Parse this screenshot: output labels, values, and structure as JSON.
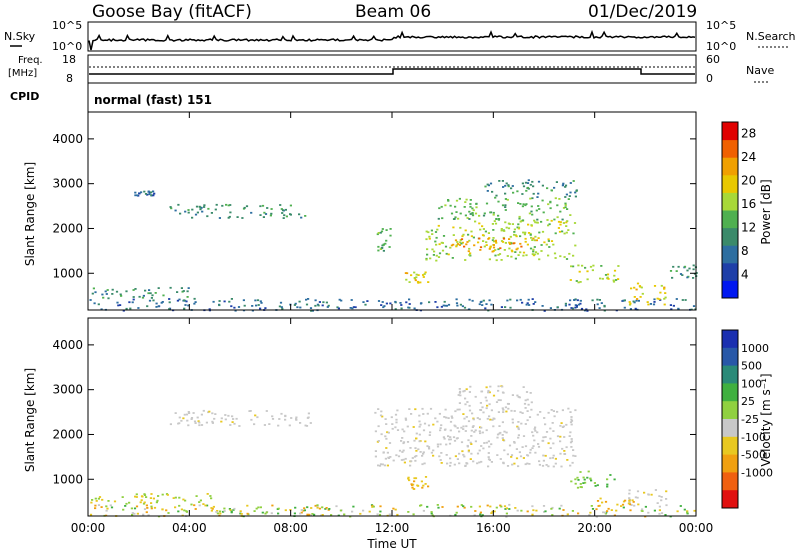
{
  "header": {
    "station": "Goose Bay (fitACF)",
    "beam": "Beam 06",
    "date": "01/Dec/2019"
  },
  "top_panels": {
    "nsky_label": "N.Sky",
    "nsky_ticks": [
      "10^5",
      "10^0"
    ],
    "nsearch_label": "N.Search",
    "nsearch_ticks": [
      "10^5",
      "10^0"
    ],
    "freq_label_1": "Freq.",
    "freq_label_2": "[MHz]",
    "freq_ticks": [
      "18",
      "8"
    ],
    "nave_label": "Nave",
    "nave_ticks": [
      "60",
      "0"
    ],
    "cpid_label": "CPID",
    "cpid_value": "normal (fast) 151"
  },
  "colors": {
    "power_scale": [
      "#0018f0",
      "#1e3fa8",
      "#2d6ea0",
      "#3a8a6a",
      "#4fb050",
      "#a8d838",
      "#e8c800",
      "#f0a000",
      "#f06000",
      "#e00000"
    ],
    "velocity_scale": [
      "#1a2fb0",
      "#2858a8",
      "#2a8a78",
      "#40b040",
      "#90d040",
      "#c8c8c8",
      "#e8c820",
      "#f0a010",
      "#f06010",
      "#e01010"
    ]
  },
  "chart_data": [
    {
      "type": "heatmap",
      "title": "Power",
      "xlabel": "",
      "ylabel": "Slant Range [km]",
      "x_ticks": [
        "00:00",
        "04:00",
        "08:00",
        "12:00",
        "16:00",
        "20:00",
        "00:00"
      ],
      "xlim_hours": [
        0,
        24
      ],
      "y_ticks": [
        1000,
        2000,
        3000,
        4000
      ],
      "ylim": [
        180,
        4600
      ],
      "colorbar_label": "Power [dB]",
      "colorbar_ticks": [
        4,
        8,
        12,
        16,
        20,
        24,
        28
      ],
      "colorbar_range": [
        0,
        30
      ],
      "regions": [
        {
          "t0": 0.0,
          "t1": 24.0,
          "r0": 180,
          "r1": 450,
          "v": 6
        },
        {
          "t0": 0.0,
          "t1": 4.0,
          "r0": 450,
          "r1": 700,
          "v": 8
        },
        {
          "t0": 3.2,
          "t1": 8.8,
          "r0": 2250,
          "r1": 2550,
          "v": 9
        },
        {
          "t0": 1.8,
          "t1": 2.6,
          "r0": 2750,
          "r1": 2850,
          "v": 7
        },
        {
          "t0": 11.3,
          "t1": 11.9,
          "r0": 1500,
          "r1": 2050,
          "v": 12
        },
        {
          "t0": 13.3,
          "t1": 19.2,
          "r0": 1300,
          "r1": 2200,
          "v": 16
        },
        {
          "t0": 14.2,
          "t1": 17.8,
          "r0": 1500,
          "r1": 1800,
          "v": 21
        },
        {
          "t0": 13.8,
          "t1": 19.0,
          "r0": 2200,
          "r1": 2700,
          "v": 12
        },
        {
          "t0": 15.5,
          "t1": 19.3,
          "r0": 2700,
          "r1": 3100,
          "v": 8
        },
        {
          "t0": 12.5,
          "t1": 13.4,
          "r0": 800,
          "r1": 1100,
          "v": 17
        },
        {
          "t0": 19.0,
          "t1": 21.0,
          "r0": 800,
          "r1": 1200,
          "v": 14
        },
        {
          "t0": 21.3,
          "t1": 22.8,
          "r0": 300,
          "r1": 800,
          "v": 18
        },
        {
          "t0": 22.8,
          "t1": 24.0,
          "r0": 900,
          "r1": 1200,
          "v": 8
        }
      ]
    },
    {
      "type": "heatmap",
      "title": "Velocity",
      "xlabel": "Time UT",
      "ylabel": "Slant Range [km]",
      "x_ticks": [
        "00:00",
        "04:00",
        "08:00",
        "12:00",
        "16:00",
        "20:00",
        "00:00"
      ],
      "xlim_hours": [
        0,
        24
      ],
      "y_ticks": [
        1000,
        2000,
        3000,
        4000
      ],
      "ylim": [
        180,
        4600
      ],
      "colorbar_label": "Velocity [m s⁻¹]",
      "colorbar_ticks": [
        "1000",
        "500",
        "100",
        "25",
        "-25",
        "-100",
        "-500",
        "-1000"
      ],
      "regions": [
        {
          "t0": 0.0,
          "t1": 24.0,
          "r0": 180,
          "r1": 450,
          "v": "mix_low"
        },
        {
          "t0": 0.0,
          "t1": 5.0,
          "r0": 450,
          "r1": 700,
          "v": "green_orange"
        },
        {
          "t0": 3.2,
          "t1": 8.8,
          "r0": 2200,
          "r1": 2550,
          "v": "gray"
        },
        {
          "t0": 11.3,
          "t1": 19.2,
          "r0": 1300,
          "r1": 2600,
          "v": "gray"
        },
        {
          "t0": 14.5,
          "t1": 17.5,
          "r0": 2600,
          "r1": 3100,
          "v": "gray"
        },
        {
          "t0": 12.5,
          "t1": 13.4,
          "r0": 800,
          "r1": 1100,
          "v": "orange"
        },
        {
          "t0": 19.0,
          "t1": 20.8,
          "r0": 800,
          "r1": 1200,
          "v": "green"
        },
        {
          "t0": 21.3,
          "t1": 22.8,
          "r0": 400,
          "r1": 800,
          "v": "gray"
        },
        {
          "t0": 20.0,
          "t1": 21.5,
          "r0": 300,
          "r1": 600,
          "v": "orange"
        }
      ]
    }
  ]
}
